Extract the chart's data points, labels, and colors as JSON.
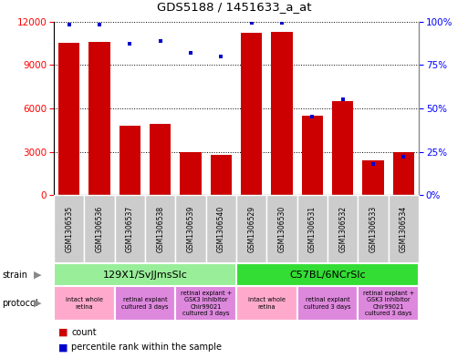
{
  "title": "GDS5188 / 1451633_a_at",
  "samples": [
    "GSM1306535",
    "GSM1306536",
    "GSM1306537",
    "GSM1306538",
    "GSM1306539",
    "GSM1306540",
    "GSM1306529",
    "GSM1306530",
    "GSM1306531",
    "GSM1306532",
    "GSM1306533",
    "GSM1306534"
  ],
  "counts": [
    10500,
    10600,
    4800,
    4900,
    3000,
    2800,
    11200,
    11300,
    5500,
    6500,
    2400,
    3000
  ],
  "percentiles": [
    98,
    98,
    87,
    89,
    82,
    80,
    99,
    99,
    45,
    55,
    18,
    22
  ],
  "ylim_left": [
    0,
    12000
  ],
  "ylim_right": [
    0,
    100
  ],
  "yticks_left": [
    0,
    3000,
    6000,
    9000,
    12000
  ],
  "yticks_right": [
    0,
    25,
    50,
    75,
    100
  ],
  "strain_groups": [
    {
      "label": "129X1/SvJJmsSlc",
      "start": 0,
      "end": 5,
      "color": "#99EE99"
    },
    {
      "label": "C57BL/6NCrSlc",
      "start": 6,
      "end": 11,
      "color": "#33DD33"
    }
  ],
  "protocol_groups": [
    {
      "label": "intact whole\nretina",
      "start": 0,
      "end": 1,
      "color": "#FFAACC"
    },
    {
      "label": "retinal explant\ncultured 3 days",
      "start": 2,
      "end": 3,
      "color": "#DD88DD"
    },
    {
      "label": "retinal explant +\nGSK3 inhibitor\nChir99021\ncultured 3 days",
      "start": 4,
      "end": 5,
      "color": "#DD88DD"
    },
    {
      "label": "intact whole\nretina",
      "start": 6,
      "end": 7,
      "color": "#FFAACC"
    },
    {
      "label": "retinal explant\ncultured 3 days",
      "start": 8,
      "end": 9,
      "color": "#DD88DD"
    },
    {
      "label": "retinal explant +\nGSK3 inhibitor\nChir99021\ncultured 3 days",
      "start": 10,
      "end": 11,
      "color": "#DD88DD"
    }
  ],
  "bar_color": "#CC0000",
  "dot_color": "#0000CC",
  "bg_color": "#FFFFFF",
  "label_area_color": "#CCCCCC",
  "label_border_color": "#FFFFFF"
}
